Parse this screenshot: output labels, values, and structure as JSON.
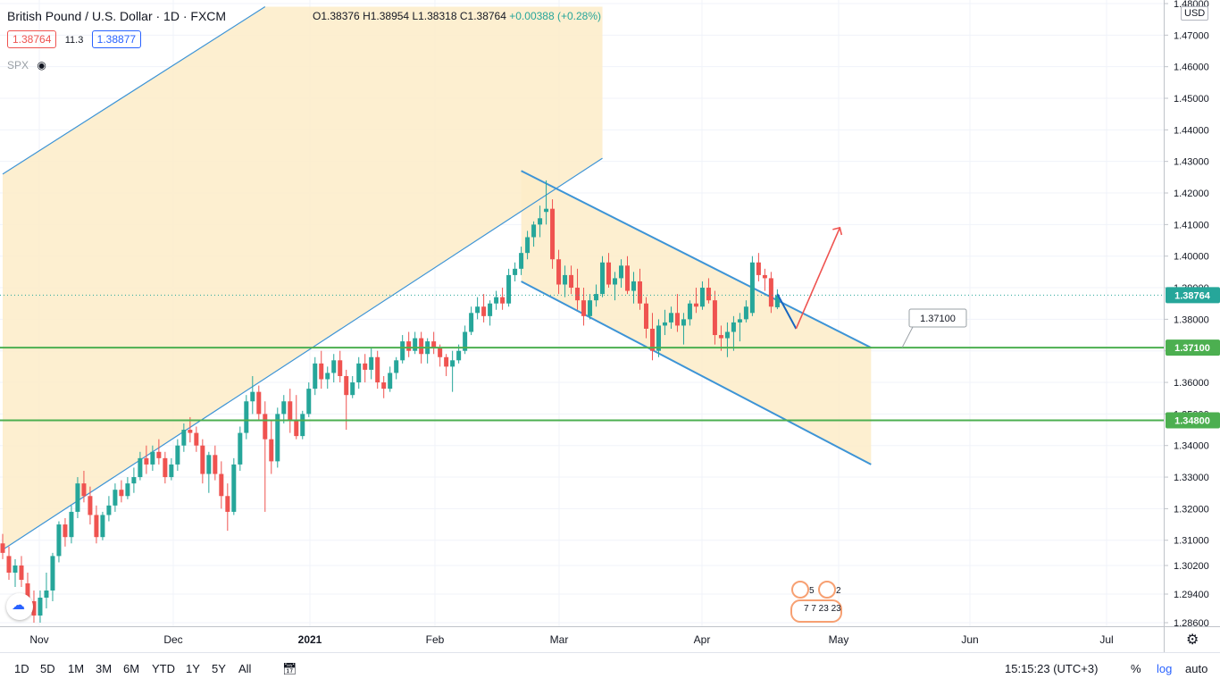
{
  "header": {
    "symbol_title": "British Pound / U.S. Dollar · 1D · FXCM",
    "ohlc": {
      "o": "O1.38376",
      "h": "H1.38954",
      "l": "L1.38318",
      "c": "C1.38764",
      "chg": "+0.00388 (+0.28%)"
    },
    "bid": "1.38764",
    "spread": "11.3",
    "ask": "1.38877",
    "overlay_symbol": "SPX",
    "currency": "USD"
  },
  "chart_data": {
    "type": "candlestick",
    "title": "British Pound / U.S. Dollar · 1D · FXCM",
    "y_ticks": [
      "1.48000",
      "1.47000",
      "1.46000",
      "1.45000",
      "1.44000",
      "1.43000",
      "1.42000",
      "1.41000",
      "1.40000",
      "1.39000",
      "1.38000",
      "1.37000",
      "1.36000",
      "1.35000",
      "1.34000",
      "1.33000",
      "1.32000",
      "1.31000",
      "1.30200",
      "1.29400",
      "1.28600"
    ],
    "x_ticks": [
      "Nov",
      "Dec",
      "2021",
      "Feb",
      "Mar",
      "Apr",
      "May",
      "Jun",
      "Jul"
    ],
    "ylim": [
      1.286,
      1.48
    ],
    "last_price": "1.38764",
    "price_labels": [
      {
        "text": "1.38764",
        "color": "#26a69a"
      },
      {
        "text": "1.37100",
        "color": "#4caf50"
      },
      {
        "text": "1.34800",
        "color": "#4caf50"
      }
    ],
    "horizontal_levels": [
      1.371,
      1.348
    ],
    "level_callout": "1.37100",
    "candles": [
      [
        1.309,
        1.312,
        1.304,
        1.306
      ],
      [
        1.305,
        1.308,
        1.298,
        1.3
      ],
      [
        1.3,
        1.304,
        1.296,
        1.302
      ],
      [
        1.302,
        1.305,
        1.296,
        1.298
      ],
      [
        1.297,
        1.3,
        1.288,
        1.292
      ],
      [
        1.292,
        1.295,
        1.286,
        1.288
      ],
      [
        1.288,
        1.295,
        1.286,
        1.293
      ],
      [
        1.293,
        1.3,
        1.29,
        1.295
      ],
      [
        1.295,
        1.306,
        1.292,
        1.305
      ],
      [
        1.305,
        1.316,
        1.303,
        1.315
      ],
      [
        1.315,
        1.317,
        1.308,
        1.311
      ],
      [
        1.311,
        1.321,
        1.309,
        1.319
      ],
      [
        1.319,
        1.33,
        1.317,
        1.328
      ],
      [
        1.328,
        1.332,
        1.322,
        1.324
      ],
      [
        1.324,
        1.327,
        1.315,
        1.318
      ],
      [
        1.318,
        1.321,
        1.309,
        1.311
      ],
      [
        1.311,
        1.319,
        1.31,
        1.318
      ],
      [
        1.318,
        1.324,
        1.316,
        1.321
      ],
      [
        1.321,
        1.328,
        1.319,
        1.326
      ],
      [
        1.326,
        1.329,
        1.322,
        1.324
      ],
      [
        1.324,
        1.33,
        1.323,
        1.328
      ],
      [
        1.328,
        1.333,
        1.325,
        1.33
      ],
      [
        1.33,
        1.338,
        1.329,
        1.336
      ],
      [
        1.336,
        1.34,
        1.331,
        1.334
      ],
      [
        1.334,
        1.34,
        1.332,
        1.338
      ],
      [
        1.338,
        1.342,
        1.334,
        1.336
      ],
      [
        1.336,
        1.338,
        1.328,
        1.33
      ],
      [
        1.33,
        1.336,
        1.329,
        1.334
      ],
      [
        1.334,
        1.342,
        1.332,
        1.34
      ],
      [
        1.34,
        1.347,
        1.338,
        1.345
      ],
      [
        1.345,
        1.349,
        1.341,
        1.344
      ],
      [
        1.344,
        1.346,
        1.338,
        1.34
      ],
      [
        1.34,
        1.342,
        1.328,
        1.331
      ],
      [
        1.331,
        1.338,
        1.325,
        1.337
      ],
      [
        1.337,
        1.34,
        1.329,
        1.331
      ],
      [
        1.331,
        1.335,
        1.32,
        1.324
      ],
      [
        1.324,
        1.328,
        1.313,
        1.319
      ],
      [
        1.319,
        1.336,
        1.318,
        1.334
      ],
      [
        1.334,
        1.346,
        1.332,
        1.344
      ],
      [
        1.344,
        1.356,
        1.342,
        1.354
      ],
      [
        1.354,
        1.362,
        1.35,
        1.357
      ],
      [
        1.357,
        1.359,
        1.348,
        1.35
      ],
      [
        1.35,
        1.354,
        1.319,
        1.342
      ],
      [
        1.342,
        1.348,
        1.331,
        1.335
      ],
      [
        1.335,
        1.352,
        1.333,
        1.35
      ],
      [
        1.35,
        1.356,
        1.347,
        1.354
      ],
      [
        1.354,
        1.358,
        1.344,
        1.348
      ],
      [
        1.348,
        1.356,
        1.342,
        1.343
      ],
      [
        1.343,
        1.351,
        1.342,
        1.35
      ],
      [
        1.35,
        1.36,
        1.349,
        1.358
      ],
      [
        1.358,
        1.368,
        1.356,
        1.366
      ],
      [
        1.366,
        1.37,
        1.358,
        1.361
      ],
      [
        1.361,
        1.365,
        1.358,
        1.363
      ],
      [
        1.363,
        1.369,
        1.36,
        1.367
      ],
      [
        1.367,
        1.37,
        1.36,
        1.362
      ],
      [
        1.362,
        1.364,
        1.345,
        1.356
      ],
      [
        1.356,
        1.362,
        1.355,
        1.36
      ],
      [
        1.36,
        1.368,
        1.358,
        1.366
      ],
      [
        1.366,
        1.369,
        1.36,
        1.364
      ],
      [
        1.364,
        1.371,
        1.361,
        1.368
      ],
      [
        1.368,
        1.37,
        1.358,
        1.36
      ],
      [
        1.36,
        1.362,
        1.355,
        1.358
      ],
      [
        1.358,
        1.365,
        1.357,
        1.363
      ],
      [
        1.363,
        1.368,
        1.361,
        1.367
      ],
      [
        1.367,
        1.375,
        1.366,
        1.373
      ],
      [
        1.373,
        1.376,
        1.368,
        1.37
      ],
      [
        1.37,
        1.376,
        1.369,
        1.374
      ],
      [
        1.374,
        1.376,
        1.366,
        1.369
      ],
      [
        1.369,
        1.374,
        1.366,
        1.373
      ],
      [
        1.373,
        1.376,
        1.369,
        1.371
      ],
      [
        1.371,
        1.372,
        1.365,
        1.368
      ],
      [
        1.368,
        1.369,
        1.362,
        1.365
      ],
      [
        1.365,
        1.37,
        1.357,
        1.367
      ],
      [
        1.367,
        1.372,
        1.366,
        1.37
      ],
      [
        1.37,
        1.378,
        1.369,
        1.376
      ],
      [
        1.376,
        1.384,
        1.375,
        1.382
      ],
      [
        1.382,
        1.387,
        1.38,
        1.384
      ],
      [
        1.384,
        1.388,
        1.379,
        1.381
      ],
      [
        1.381,
        1.386,
        1.378,
        1.385
      ],
      [
        1.385,
        1.389,
        1.383,
        1.387
      ],
      [
        1.387,
        1.39,
        1.383,
        1.385
      ],
      [
        1.385,
        1.396,
        1.384,
        1.394
      ],
      [
        1.394,
        1.398,
        1.392,
        1.396
      ],
      [
        1.396,
        1.403,
        1.394,
        1.401
      ],
      [
        1.401,
        1.408,
        1.399,
        1.406
      ],
      [
        1.406,
        1.411,
        1.403,
        1.41
      ],
      [
        1.41,
        1.416,
        1.406,
        1.412
      ],
      [
        1.414,
        1.424,
        1.41,
        1.415
      ],
      [
        1.415,
        1.418,
        1.396,
        1.399
      ],
      [
        1.399,
        1.402,
        1.388,
        1.391
      ],
      [
        1.391,
        1.397,
        1.387,
        1.394
      ],
      [
        1.394,
        1.397,
        1.388,
        1.39
      ],
      [
        1.39,
        1.396,
        1.383,
        1.386
      ],
      [
        1.386,
        1.39,
        1.378,
        1.381
      ],
      [
        1.381,
        1.388,
        1.38,
        1.386
      ],
      [
        1.386,
        1.391,
        1.384,
        1.388
      ],
      [
        1.388,
        1.4,
        1.387,
        1.398
      ],
      [
        1.398,
        1.401,
        1.39,
        1.391
      ],
      [
        1.391,
        1.395,
        1.386,
        1.393
      ],
      [
        1.393,
        1.399,
        1.39,
        1.397
      ],
      [
        1.397,
        1.4,
        1.388,
        1.389
      ],
      [
        1.389,
        1.395,
        1.385,
        1.392
      ],
      [
        1.392,
        1.396,
        1.383,
        1.385
      ],
      [
        1.385,
        1.387,
        1.374,
        1.377
      ],
      [
        1.377,
        1.382,
        1.367,
        1.37
      ],
      [
        1.37,
        1.38,
        1.368,
        1.378
      ],
      [
        1.378,
        1.383,
        1.375,
        1.379
      ],
      [
        1.379,
        1.384,
        1.377,
        1.382
      ],
      [
        1.382,
        1.388,
        1.376,
        1.378
      ],
      [
        1.378,
        1.382,
        1.372,
        1.38
      ],
      [
        1.38,
        1.386,
        1.378,
        1.385
      ],
      [
        1.385,
        1.39,
        1.382,
        1.384
      ],
      [
        1.384,
        1.392,
        1.383,
        1.39
      ],
      [
        1.39,
        1.393,
        1.385,
        1.386
      ],
      [
        1.386,
        1.389,
        1.372,
        1.375
      ],
      [
        1.375,
        1.378,
        1.37,
        1.374
      ],
      [
        1.374,
        1.379,
        1.368,
        1.376
      ],
      [
        1.376,
        1.381,
        1.37,
        1.379
      ],
      [
        1.379,
        1.382,
        1.373,
        1.38
      ],
      [
        1.38,
        1.386,
        1.379,
        1.384
      ],
      [
        1.382,
        1.4,
        1.381,
        1.398
      ],
      [
        1.398,
        1.401,
        1.392,
        1.394
      ],
      [
        1.394,
        1.396,
        1.389,
        1.393
      ],
      [
        1.393,
        1.395,
        1.382,
        1.384
      ],
      [
        1.3838,
        1.3895,
        1.3832,
        1.3876
      ]
    ],
    "channel_upper_rising": [
      [
        1.307,
        0
      ],
      [
        1.431,
        96
      ]
    ],
    "channel_lower_falling": [
      [
        1.427,
        83
      ],
      [
        1.371,
        139
      ]
    ],
    "channel_mid_falling": [
      [
        1.392,
        83
      ],
      [
        1.334,
        139
      ]
    ],
    "channel_parallel_rising": [
      [
        1.426,
        0
      ],
      [
        1.479,
        42
      ]
    ],
    "forecast_arrow": [
      [
        1.388,
        124
      ],
      [
        1.377,
        127
      ],
      [
        1.409,
        134
      ]
    ]
  },
  "bottom_bar": {
    "ranges": [
      "1D",
      "5D",
      "1M",
      "3M",
      "6M",
      "YTD",
      "1Y",
      "5Y",
      "All"
    ],
    "clock": "15:15:23 (UTC+3)",
    "percent": "%",
    "log": "log",
    "auto": "auto"
  },
  "events": {
    "badge_a": "5",
    "badge_b": "2",
    "badge_row": "7 7 23 23"
  },
  "colors": {
    "up": "#26a69a",
    "down": "#ef5350",
    "channel": "#3d94d6",
    "fill": "#fdecc8",
    "level": "#4caf50"
  }
}
